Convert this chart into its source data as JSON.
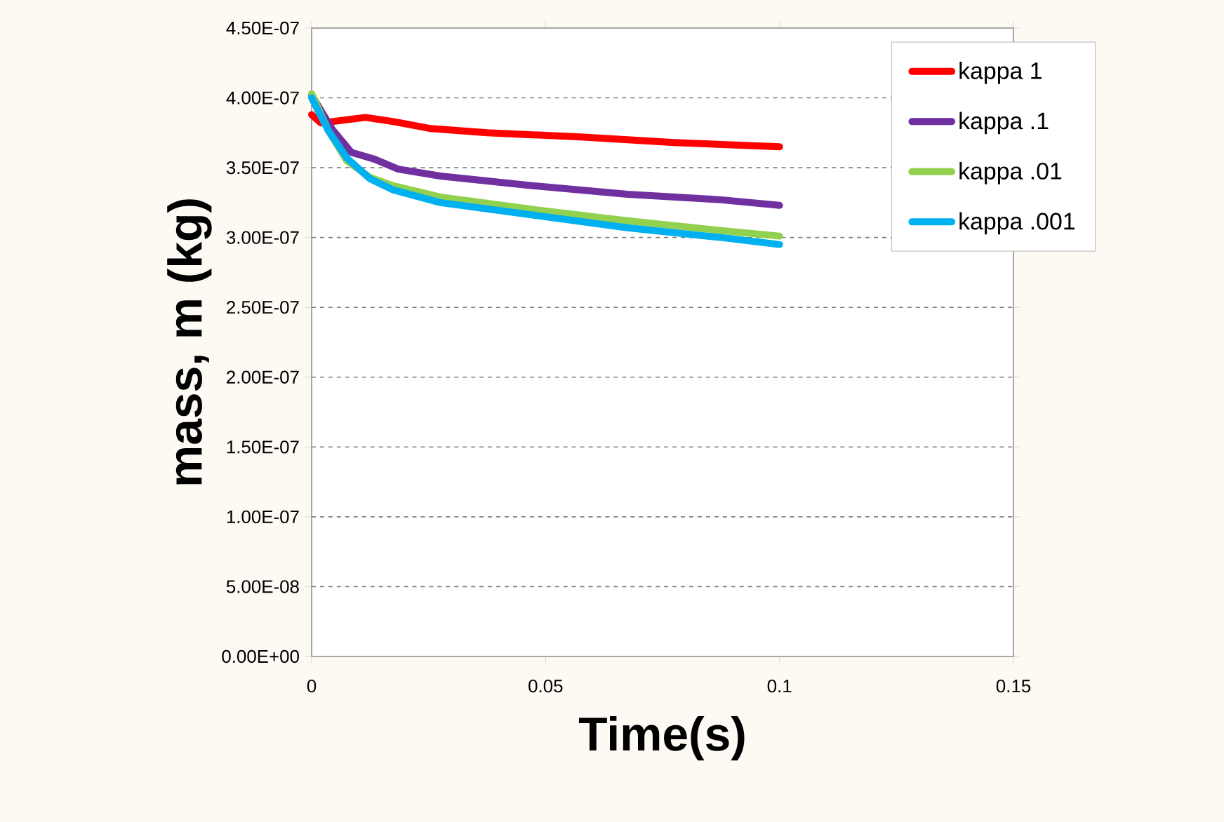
{
  "chart_data": {
    "type": "line",
    "xlabel": "Time(s)",
    "ylabel": "mass, m (kg)",
    "xlim": [
      0,
      0.15
    ],
    "xticks": [
      0,
      0.05,
      0.1,
      0.15
    ],
    "ylim": [
      0,
      4.5e-07
    ],
    "yticks": [
      {
        "value": 0,
        "label": "0.00E+00"
      },
      {
        "value": 5e-08,
        "label": "5.00E-08"
      },
      {
        "value": 1e-07,
        "label": "1.00E-07"
      },
      {
        "value": 1.5e-07,
        "label": "1.50E-07"
      },
      {
        "value": 2e-07,
        "label": "2.00E-07"
      },
      {
        "value": 2.5e-07,
        "label": "2.50E-07"
      },
      {
        "value": 3e-07,
        "label": "3.00E-07"
      },
      {
        "value": 3.5e-07,
        "label": "3.50E-07"
      },
      {
        "value": 4e-07,
        "label": "4.00E-07"
      },
      {
        "value": 4.5e-07,
        "label": "4.50E-07"
      }
    ],
    "grid": "y",
    "legend": "top right",
    "marker": "none",
    "line_style": "solid",
    "series": [
      {
        "name": "kappa 1",
        "color": "#ff0000",
        "x": [
          0,
          0.002,
          0.0115,
          0.0175,
          0.0255,
          0.0375,
          0.0575,
          0.0775,
          0.1
        ],
        "values": [
          3.88e-07,
          3.82e-07,
          3.86e-07,
          3.83e-07,
          3.78e-07,
          3.75e-07,
          3.72e-07,
          3.68e-07,
          3.65e-07
        ]
      },
      {
        "name": "kappa .1",
        "color": "#7030a0",
        "x": [
          0,
          0.0045,
          0.0085,
          0.0135,
          0.0185,
          0.0275,
          0.0475,
          0.0675,
          0.0875,
          0.1
        ],
        "values": [
          4.02e-07,
          3.77e-07,
          3.61e-07,
          3.56e-07,
          3.49e-07,
          3.44e-07,
          3.37e-07,
          3.31e-07,
          3.27e-07,
          3.23e-07
        ]
      },
      {
        "name": "kappa .01",
        "color": "#92d050",
        "x": [
          0,
          0.0035,
          0.0075,
          0.0125,
          0.0175,
          0.0275,
          0.0475,
          0.0675,
          0.0875,
          0.1
        ],
        "values": [
          4.03e-07,
          3.77e-07,
          3.55e-07,
          3.43e-07,
          3.37e-07,
          3.29e-07,
          3.2e-07,
          3.12e-07,
          3.05e-07,
          3.01e-07
        ]
      },
      {
        "name": "kappa .001",
        "color": "#00b0f0",
        "x": [
          0,
          0.0035,
          0.0075,
          0.0125,
          0.0175,
          0.0275,
          0.0475,
          0.0675,
          0.0875,
          0.1
        ],
        "values": [
          4e-07,
          3.77e-07,
          3.57e-07,
          3.42e-07,
          3.34e-07,
          3.25e-07,
          3.16e-07,
          3.07e-07,
          3e-07,
          2.95e-07
        ]
      }
    ]
  }
}
